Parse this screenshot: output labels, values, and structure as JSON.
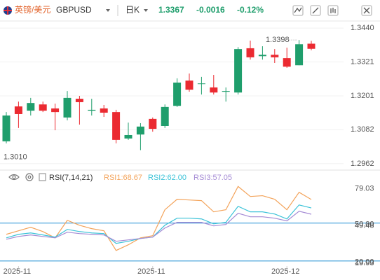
{
  "header": {
    "name": "英镑/美元",
    "symbol": "GBPUSD",
    "period": "日K",
    "price": "1.3367",
    "change": "-0.0016",
    "change_pct": "-0.12%"
  },
  "chart_data": [
    {
      "type": "candlestick",
      "open": [
        1.3041,
        1.3164,
        1.3149,
        1.3171,
        1.3157,
        1.3125,
        1.3191,
        1.3149,
        1.3157,
        1.3144,
        1.3051,
        1.3065,
        1.312,
        1.3095,
        1.3166,
        1.3255,
        1.3243,
        1.3231,
        1.3216,
        1.3213,
        1.3369,
        1.3341,
        1.3346,
        1.3334,
        1.3309,
        1.3385
      ],
      "high": [
        1.3144,
        1.3181,
        1.3194,
        1.3181,
        1.3174,
        1.3218,
        1.3201,
        1.3191,
        1.3169,
        1.3152,
        1.3107,
        1.3105,
        1.3125,
        1.3171,
        1.3263,
        1.328,
        1.3268,
        1.3275,
        1.3231,
        1.3373,
        1.3396,
        1.3376,
        1.3366,
        1.3371,
        1.3398,
        1.3395
      ],
      "low": [
        1.3034,
        1.3088,
        1.3132,
        1.3144,
        1.308,
        1.3115,
        1.31,
        1.3132,
        1.3127,
        1.3034,
        1.3046,
        1.301,
        1.3075,
        1.3088,
        1.3162,
        1.3216,
        1.3206,
        1.3206,
        1.3181,
        1.3206,
        1.3329,
        1.3329,
        1.3317,
        1.33,
        1.3309,
        1.3362
      ],
      "close": [
        1.3132,
        1.3137,
        1.3176,
        1.3149,
        1.3144,
        1.3194,
        1.3179,
        1.3152,
        1.3142,
        1.3046,
        1.3063,
        1.3093,
        1.3085,
        1.3162,
        1.3248,
        1.3223,
        1.3245,
        1.3213,
        1.3218,
        1.3366,
        1.3337,
        1.3346,
        1.3337,
        1.3304,
        1.3383,
        1.3367
      ],
      "up_color": "#1f9e6c",
      "down_color": "#eb2a31",
      "ylim": [
        1.2947,
        1.3465
      ],
      "yticks": [
        {
          "value": 1.344,
          "label": "1.3440"
        },
        1.3321,
        1.3201,
        1.3082,
        1.2962
      ],
      "grid": true,
      "high_label": {
        "value": 1.3398,
        "label": "1.3398"
      },
      "low_label": {
        "value": 1.301,
        "label": "1.3010"
      }
    },
    {
      "type": "line",
      "title": "RSI(7,14,21)",
      "categories": [
        null,
        "2025-11",
        null,
        null,
        null,
        null,
        null,
        null,
        null,
        null,
        null,
        null,
        "2025-11",
        null,
        null,
        null,
        null,
        null,
        null,
        null,
        null,
        null,
        null,
        "2025-12",
        null,
        null
      ],
      "series": [
        {
          "name": "RSI1:68.67",
          "color": "#f3a35a",
          "values": [
            41.1,
            43.9,
            46.7,
            43.3,
            38.3,
            52.2,
            48.3,
            45.6,
            43.9,
            28.3,
            32.8,
            38.3,
            40.0,
            60.6,
            68.9,
            68.3,
            67.8,
            58.9,
            60.6,
            79.03,
            71.1,
            71.7,
            68.9,
            60.6,
            74.4,
            68.67
          ]
        },
        {
          "name": "RSI2:62.00",
          "color": "#3cc3d8",
          "values": [
            38.3,
            41.1,
            42.2,
            40.6,
            38.9,
            45.0,
            43.3,
            42.2,
            41.7,
            33.9,
            35.6,
            37.8,
            38.9,
            48.3,
            53.9,
            53.9,
            53.3,
            49.4,
            50.6,
            63.3,
            58.9,
            58.9,
            57.2,
            53.3,
            64.4,
            62.0
          ]
        },
        {
          "name": "RSI3:57.05",
          "color": "#a48ad4",
          "values": [
            37.2,
            39.4,
            40.6,
            39.4,
            38.3,
            42.8,
            41.7,
            41.1,
            40.6,
            35.6,
            36.7,
            37.8,
            38.9,
            46.1,
            50.6,
            50.6,
            50.6,
            47.8,
            48.9,
            57.8,
            55.0,
            55.0,
            53.9,
            51.7,
            59.4,
            57.05
          ]
        }
      ],
      "ylim": [
        16,
        87
      ],
      "yticks": [
        79.03,
        49.48,
        19.93
      ],
      "reference_lines": [
        {
          "value": 50,
          "label": "50.00"
        },
        {
          "value": 20,
          "label": "20.00"
        }
      ],
      "reference_color": "#3a9bd9"
    }
  ]
}
